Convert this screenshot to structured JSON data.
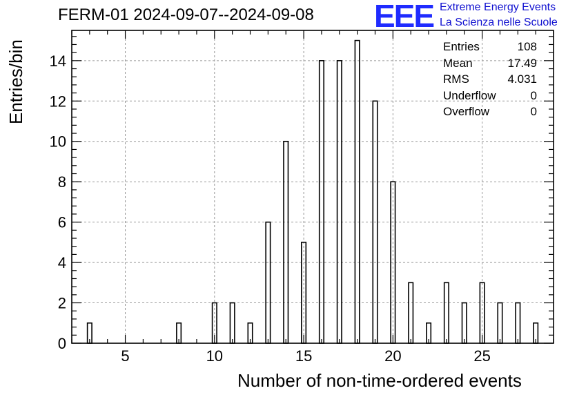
{
  "title": "FERM-01 2024-09-07--2024-09-08",
  "logo": {
    "mark": "EEE",
    "line1": "Extreme Energy Events",
    "line2": "La Scienza nelle Scuole"
  },
  "stats": [
    {
      "label": "Entries",
      "value": "108"
    },
    {
      "label": "Mean",
      "value": "17.49"
    },
    {
      "label": "RMS",
      "value": "4.031"
    },
    {
      "label": "Underflow",
      "value": "0"
    },
    {
      "label": "Overflow",
      "value": "0"
    }
  ],
  "chart_data": {
    "type": "bar",
    "title": "FERM-01 2024-09-07--2024-09-08",
    "xlabel": "Number of non-time-ordered events",
    "ylabel": "Entries/bin",
    "xlim": [
      2,
      29
    ],
    "ylim": [
      0,
      15.5
    ],
    "grid": true,
    "x_ticks": [
      5,
      10,
      15,
      20,
      25
    ],
    "y_ticks": [
      0,
      2,
      4,
      6,
      8,
      10,
      12,
      14
    ],
    "bins": [
      {
        "x": 3,
        "value": 1
      },
      {
        "x": 8,
        "value": 1
      },
      {
        "x": 10,
        "value": 2
      },
      {
        "x": 11,
        "value": 2
      },
      {
        "x": 12,
        "value": 1
      },
      {
        "x": 13,
        "value": 6
      },
      {
        "x": 14,
        "value": 10
      },
      {
        "x": 15,
        "value": 5
      },
      {
        "x": 16,
        "value": 14
      },
      {
        "x": 17,
        "value": 14
      },
      {
        "x": 18,
        "value": 15
      },
      {
        "x": 19,
        "value": 12
      },
      {
        "x": 20,
        "value": 8
      },
      {
        "x": 21,
        "value": 3
      },
      {
        "x": 22,
        "value": 1
      },
      {
        "x": 23,
        "value": 3
      },
      {
        "x": 24,
        "value": 2
      },
      {
        "x": 25,
        "value": 3
      },
      {
        "x": 26,
        "value": 2
      },
      {
        "x": 27,
        "value": 2
      },
      {
        "x": 28,
        "value": 1
      }
    ]
  }
}
